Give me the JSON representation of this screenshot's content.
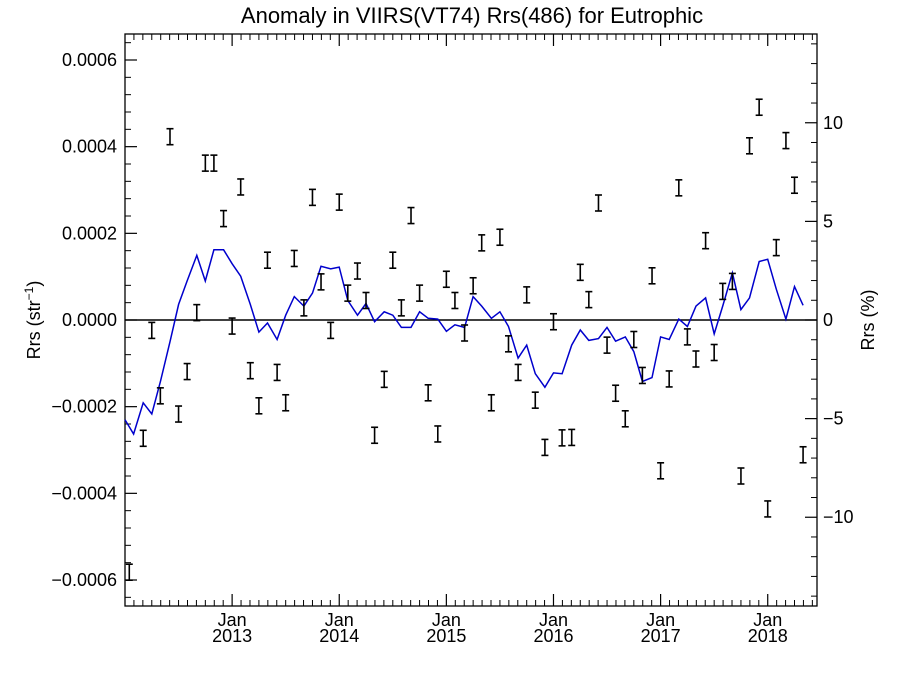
{
  "chart_data": {
    "type": "scatter",
    "title": "Anomaly in VIIRS(VT74) Rrs(486) for Eutrophic",
    "ylabel_left": {
      "base": "Rrs (str",
      "sup": "−1",
      "close": ")"
    },
    "ylabel_right": "Rrs (%)",
    "xlim": [
      2012.0,
      2018.46
    ],
    "ylim": [
      -0.00066,
      0.00066
    ],
    "ylim_right": [
      -14.5,
      14.5
    ],
    "left_ticks": [
      {
        "value": 0.0006,
        "label": "0.0006"
      },
      {
        "value": 0.0004,
        "label": "0.0004"
      },
      {
        "value": 0.0002,
        "label": "0.0002"
      },
      {
        "value": 0.0,
        "label": "0.0000"
      },
      {
        "value": -0.0002,
        "label": "−0.0002"
      },
      {
        "value": -0.0004,
        "label": "−0.0004"
      },
      {
        "value": -0.0006,
        "label": "−0.0006"
      }
    ],
    "right_ticks": [
      {
        "value": 10,
        "label": "10"
      },
      {
        "value": 5,
        "label": "5"
      },
      {
        "value": 0,
        "label": "0"
      },
      {
        "value": -5,
        "label": "−5"
      },
      {
        "value": -10,
        "label": "−10"
      }
    ],
    "x_ticks": [
      {
        "value": 2013.0,
        "month": "Jan",
        "year": "2013"
      },
      {
        "value": 2014.0,
        "month": "Jan",
        "year": "2014"
      },
      {
        "value": 2015.0,
        "month": "Jan",
        "year": "2015"
      },
      {
        "value": 2016.0,
        "month": "Jan",
        "year": "2016"
      },
      {
        "value": 2017.0,
        "month": "Jan",
        "year": "2017"
      },
      {
        "value": 2018.0,
        "month": "Jan",
        "year": "2018"
      }
    ],
    "series": [
      {
        "kind": "error-bars",
        "color": "#000000",
        "points": [
          {
            "x": 2012.04,
            "y": -0.000582
          },
          {
            "x": 2012.17,
            "y": -0.000273
          },
          {
            "x": 2012.25,
            "y": -2.4e-05
          },
          {
            "x": 2012.33,
            "y": -0.000175
          },
          {
            "x": 2012.42,
            "y": 0.000423
          },
          {
            "x": 2012.5,
            "y": -0.000217
          },
          {
            "x": 2012.58,
            "y": -0.000119
          },
          {
            "x": 2012.67,
            "y": 1.7e-05
          },
          {
            "x": 2012.75,
            "y": 0.000362
          },
          {
            "x": 2012.83,
            "y": 0.000362
          },
          {
            "x": 2012.92,
            "y": 0.000234
          },
          {
            "x": 2013.0,
            "y": -1.4e-05
          },
          {
            "x": 2013.08,
            "y": 0.000307
          },
          {
            "x": 2013.17,
            "y": -0.000117
          },
          {
            "x": 2013.25,
            "y": -0.000198
          },
          {
            "x": 2013.33,
            "y": 0.000138
          },
          {
            "x": 2013.42,
            "y": -0.000121
          },
          {
            "x": 2013.5,
            "y": -0.000191
          },
          {
            "x": 2013.58,
            "y": 0.000142
          },
          {
            "x": 2013.67,
            "y": 2.8e-05
          },
          {
            "x": 2013.75,
            "y": 0.000283
          },
          {
            "x": 2013.83,
            "y": 8.8e-05
          },
          {
            "x": 2013.92,
            "y": -2.4e-05
          },
          {
            "x": 2014.0,
            "y": 0.000272
          },
          {
            "x": 2014.08,
            "y": 6.2e-05
          },
          {
            "x": 2014.17,
            "y": 0.000113
          },
          {
            "x": 2014.25,
            "y": 4.5e-05
          },
          {
            "x": 2014.33,
            "y": -0.000266
          },
          {
            "x": 2014.42,
            "y": -0.000137
          },
          {
            "x": 2014.5,
            "y": 0.000138
          },
          {
            "x": 2014.58,
            "y": 2.8e-05
          },
          {
            "x": 2014.67,
            "y": 0.000241
          },
          {
            "x": 2014.75,
            "y": 6.2e-05
          },
          {
            "x": 2014.83,
            "y": -0.000168
          },
          {
            "x": 2014.92,
            "y": -0.000263
          },
          {
            "x": 2015.0,
            "y": 9.4e-05
          },
          {
            "x": 2015.08,
            "y": 4.5e-05
          },
          {
            "x": 2015.17,
            "y": -3e-05
          },
          {
            "x": 2015.25,
            "y": 7.9e-05
          },
          {
            "x": 2015.33,
            "y": 0.000178
          },
          {
            "x": 2015.42,
            "y": -0.000191
          },
          {
            "x": 2015.5,
            "y": 0.000191
          },
          {
            "x": 2015.58,
            "y": -5.5e-05
          },
          {
            "x": 2015.67,
            "y": -0.000121
          },
          {
            "x": 2015.75,
            "y": 5.8e-05
          },
          {
            "x": 2015.83,
            "y": -0.000185
          },
          {
            "x": 2015.92,
            "y": -0.000294
          },
          {
            "x": 2016.0,
            "y": -4e-06
          },
          {
            "x": 2016.08,
            "y": -0.000272
          },
          {
            "x": 2016.17,
            "y": -0.000271
          },
          {
            "x": 2016.25,
            "y": 0.00011
          },
          {
            "x": 2016.33,
            "y": 4.7e-05
          },
          {
            "x": 2016.42,
            "y": 0.00027
          },
          {
            "x": 2016.5,
            "y": -5.8e-05
          },
          {
            "x": 2016.58,
            "y": -0.000169
          },
          {
            "x": 2016.67,
            "y": -0.000228
          },
          {
            "x": 2016.75,
            "y": -4.5e-05
          },
          {
            "x": 2016.83,
            "y": -0.000128
          },
          {
            "x": 2016.92,
            "y": 0.000102
          },
          {
            "x": 2017.0,
            "y": -0.000348
          },
          {
            "x": 2017.08,
            "y": -0.000136
          },
          {
            "x": 2017.17,
            "y": 0.000305
          },
          {
            "x": 2017.25,
            "y": -3.9e-05
          },
          {
            "x": 2017.33,
            "y": -9e-05
          },
          {
            "x": 2017.42,
            "y": 0.000183
          },
          {
            "x": 2017.5,
            "y": -7.5e-05
          },
          {
            "x": 2017.58,
            "y": 6.6e-05
          },
          {
            "x": 2017.67,
            "y": 8.9e-05
          },
          {
            "x": 2017.75,
            "y": -0.00036
          },
          {
            "x": 2017.83,
            "y": 0.000402
          },
          {
            "x": 2017.92,
            "y": 0.000491
          },
          {
            "x": 2018.0,
            "y": -0.000436
          },
          {
            "x": 2018.08,
            "y": 0.000167
          },
          {
            "x": 2018.17,
            "y": 0.000414
          },
          {
            "x": 2018.25,
            "y": 0.000311
          },
          {
            "x": 2018.33,
            "y": -0.000311
          }
        ]
      },
      {
        "kind": "line",
        "color": "#0000cc",
        "points": [
          {
            "x": 2012.0,
            "y": -0.00023
          },
          {
            "x": 2012.08,
            "y": -0.000263
          },
          {
            "x": 2012.17,
            "y": -0.000191
          },
          {
            "x": 2012.25,
            "y": -0.000217
          },
          {
            "x": 2012.33,
            "y": -0.000143
          },
          {
            "x": 2012.42,
            "y": -5e-05
          },
          {
            "x": 2012.5,
            "y": 3.6e-05
          },
          {
            "x": 2012.58,
            "y": 9e-05
          },
          {
            "x": 2012.67,
            "y": 0.000149
          },
          {
            "x": 2012.75,
            "y": 9e-05
          },
          {
            "x": 2012.83,
            "y": 0.000162
          },
          {
            "x": 2012.92,
            "y": 0.000162
          },
          {
            "x": 2013.0,
            "y": 0.00013
          },
          {
            "x": 2013.08,
            "y": 0.000101
          },
          {
            "x": 2013.17,
            "y": 3.6e-05
          },
          {
            "x": 2013.25,
            "y": -2.8e-05
          },
          {
            "x": 2013.33,
            "y": -7e-06
          },
          {
            "x": 2013.42,
            "y": -4.5e-05
          },
          {
            "x": 2013.5,
            "y": 1.1e-05
          },
          {
            "x": 2013.58,
            "y": 5.4e-05
          },
          {
            "x": 2013.67,
            "y": 3.2e-05
          },
          {
            "x": 2013.75,
            "y": 6.2e-05
          },
          {
            "x": 2013.83,
            "y": 0.000124
          },
          {
            "x": 2013.92,
            "y": 0.000118
          },
          {
            "x": 2014.0,
            "y": 0.000122
          },
          {
            "x": 2014.08,
            "y": 4.5e-05
          },
          {
            "x": 2014.17,
            "y": 1.1e-05
          },
          {
            "x": 2014.25,
            "y": 3.8e-05
          },
          {
            "x": 2014.33,
            "y": -4e-06
          },
          {
            "x": 2014.42,
            "y": 1.9e-05
          },
          {
            "x": 2014.5,
            "y": 1.1e-05
          },
          {
            "x": 2014.58,
            "y": -1.7e-05
          },
          {
            "x": 2014.67,
            "y": -1.7e-05
          },
          {
            "x": 2014.75,
            "y": 1.9e-05
          },
          {
            "x": 2014.83,
            "y": 4e-06
          },
          {
            "x": 2014.92,
            "y": 2e-06
          },
          {
            "x": 2015.0,
            "y": -2.6e-05
          },
          {
            "x": 2015.08,
            "y": -1.1e-05
          },
          {
            "x": 2015.17,
            "y": -1.7e-05
          },
          {
            "x": 2015.25,
            "y": 5.4e-05
          },
          {
            "x": 2015.33,
            "y": 3.2e-05
          },
          {
            "x": 2015.42,
            "y": 4e-06
          },
          {
            "x": 2015.5,
            "y": 1.9e-05
          },
          {
            "x": 2015.58,
            "y": -1.5e-05
          },
          {
            "x": 2015.67,
            "y": -8.8e-05
          },
          {
            "x": 2015.75,
            "y": -5.8e-05
          },
          {
            "x": 2015.83,
            "y": -0.000124
          },
          {
            "x": 2015.92,
            "y": -0.000155
          },
          {
            "x": 2016.0,
            "y": -0.000122
          },
          {
            "x": 2016.08,
            "y": -0.000124
          },
          {
            "x": 2016.17,
            "y": -5.8e-05
          },
          {
            "x": 2016.25,
            "y": -2.3e-05
          },
          {
            "x": 2016.33,
            "y": -4.7e-05
          },
          {
            "x": 2016.42,
            "y": -4.3e-05
          },
          {
            "x": 2016.5,
            "y": -1.7e-05
          },
          {
            "x": 2016.58,
            "y": -4.9e-05
          },
          {
            "x": 2016.67,
            "y": -3.9e-05
          },
          {
            "x": 2016.75,
            "y": -7.3e-05
          },
          {
            "x": 2016.83,
            "y": -0.000142
          },
          {
            "x": 2016.92,
            "y": -0.000133
          },
          {
            "x": 2017.0,
            "y": -3.9e-05
          },
          {
            "x": 2017.08,
            "y": -4.5e-05
          },
          {
            "x": 2017.17,
            "y": 2e-06
          },
          {
            "x": 2017.25,
            "y": -1.5e-05
          },
          {
            "x": 2017.33,
            "y": 3.2e-05
          },
          {
            "x": 2017.42,
            "y": 5.1e-05
          },
          {
            "x": 2017.5,
            "y": -3.2e-05
          },
          {
            "x": 2017.58,
            "y": 3.2e-05
          },
          {
            "x": 2017.67,
            "y": 0.000109
          },
          {
            "x": 2017.75,
            "y": 2.4e-05
          },
          {
            "x": 2017.83,
            "y": 5.1e-05
          },
          {
            "x": 2017.92,
            "y": 0.000135
          },
          {
            "x": 2018.0,
            "y": 0.00014
          },
          {
            "x": 2018.08,
            "y": 7.1e-05
          },
          {
            "x": 2018.17,
            "y": 2e-06
          },
          {
            "x": 2018.25,
            "y": 7.7e-05
          },
          {
            "x": 2018.33,
            "y": 3.4e-05
          }
        ]
      }
    ],
    "zero_line": true
  }
}
